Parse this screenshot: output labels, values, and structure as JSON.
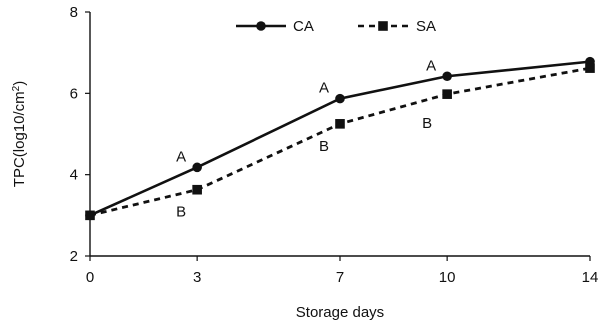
{
  "chart_data": {
    "type": "line",
    "xlabel": "Storage days",
    "ylabel_main": "TPC(log10/cm",
    "ylabel_sup": "2",
    "ylabel_close": ")",
    "x": [
      0,
      3,
      7,
      10,
      14
    ],
    "xticks": [
      "0",
      "3",
      "7",
      "10",
      "14"
    ],
    "yticks": [
      "2",
      "4",
      "6",
      "8"
    ],
    "ylim": [
      2,
      8
    ],
    "legend_position": "top-center",
    "grid": false,
    "series": [
      {
        "name": "CA",
        "values": [
          3.0,
          4.18,
          5.87,
          6.42,
          6.78
        ],
        "line_style": "solid",
        "marker": "circle",
        "color": "#111111"
      },
      {
        "name": "SA",
        "values": [
          3.0,
          3.63,
          5.25,
          5.98,
          6.62
        ],
        "line_style": "dashed",
        "marker": "square",
        "color": "#111111"
      }
    ],
    "annotations": [
      {
        "text": "A",
        "x": 3,
        "y": 4.18,
        "anchor": "above-left"
      },
      {
        "text": "B",
        "x": 3,
        "y": 3.63,
        "anchor": "below-left"
      },
      {
        "text": "A",
        "x": 7,
        "y": 5.87,
        "anchor": "above-left"
      },
      {
        "text": "B",
        "x": 7,
        "y": 5.25,
        "anchor": "below-left"
      },
      {
        "text": "A",
        "x": 10,
        "y": 6.42,
        "anchor": "above-left"
      },
      {
        "text": "B",
        "x": 10,
        "y": 5.98,
        "anchor": "below-left-far"
      }
    ]
  }
}
